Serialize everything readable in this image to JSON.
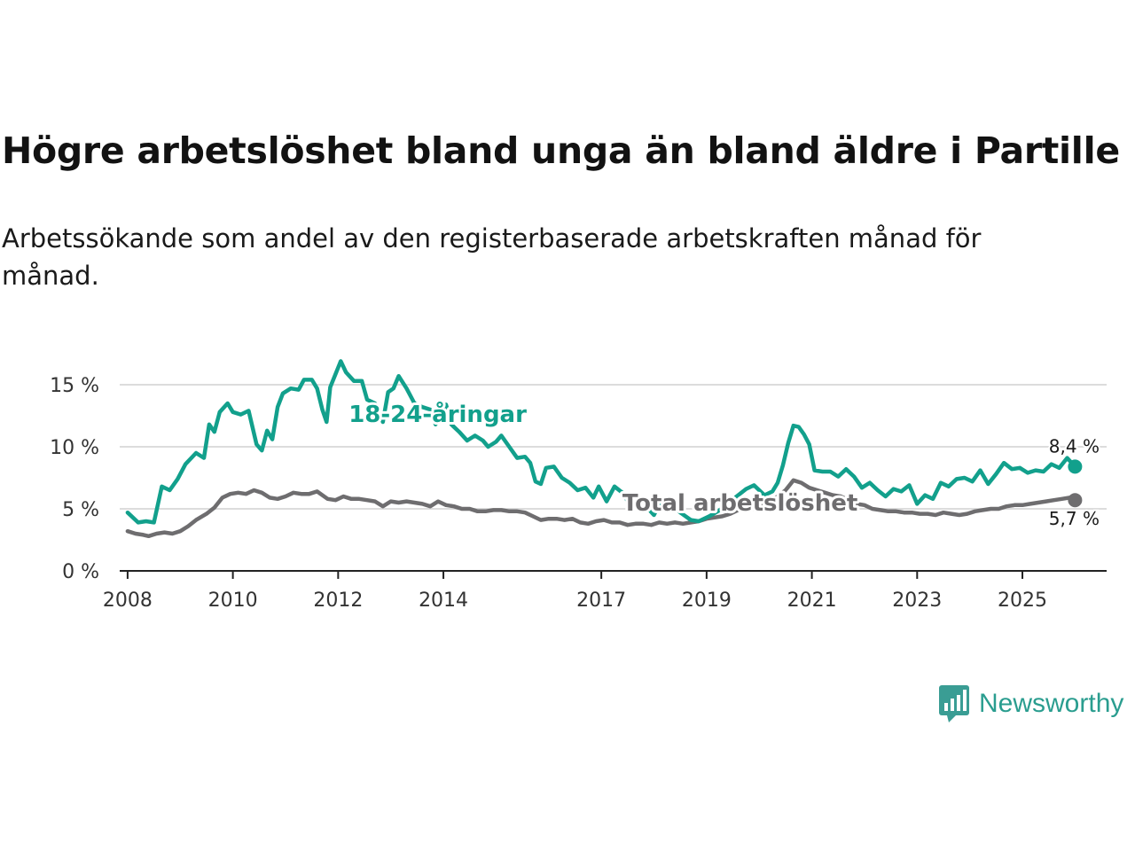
{
  "title": "Högre arbetslöshet bland unga än bland äldre i Partille",
  "subtitle": "Arbetssökande som andel av den registerbaserade arbetskraften månad för månad.",
  "brand": {
    "name": "Newsworthy",
    "icon": "newsworthy-logo-icon",
    "color": "#3a9d94"
  },
  "chart_data": {
    "type": "line",
    "title": "Högre arbetslöshet bland unga än bland äldre i Partille",
    "xlabel": "",
    "ylabel": "",
    "xlim": [
      2007.85,
      2026.6
    ],
    "ylim": [
      0,
      16
    ],
    "yticks": [
      0,
      5,
      10,
      15
    ],
    "ytick_labels": [
      "0 %",
      "5 %",
      "10 %",
      "15 %"
    ],
    "xticks": [
      2008,
      2010,
      2012,
      2014,
      2017,
      2019,
      2021,
      2023,
      2025
    ],
    "xtick_labels": [
      "2008",
      "2010",
      "2012",
      "2014",
      "2017",
      "2019",
      "2021",
      "2023",
      "2025"
    ],
    "grid": true,
    "series": [
      {
        "name": "18-24-åringar",
        "color": "#12a08c",
        "label_at": [
          2012.2,
          12
        ],
        "end_label": "8,4 %",
        "points": [
          [
            2008.0,
            4.7
          ],
          [
            2008.2,
            3.9
          ],
          [
            2008.35,
            4.0
          ],
          [
            2008.5,
            3.9
          ],
          [
            2008.65,
            6.8
          ],
          [
            2008.8,
            6.5
          ],
          [
            2008.95,
            7.4
          ],
          [
            2009.1,
            8.6
          ],
          [
            2009.3,
            9.5
          ],
          [
            2009.45,
            9.1
          ],
          [
            2009.55,
            11.8
          ],
          [
            2009.65,
            11.2
          ],
          [
            2009.75,
            12.8
          ],
          [
            2009.9,
            13.5
          ],
          [
            2010.0,
            12.8
          ],
          [
            2010.15,
            12.6
          ],
          [
            2010.3,
            12.9
          ],
          [
            2010.45,
            10.2
          ],
          [
            2010.55,
            9.7
          ],
          [
            2010.65,
            11.3
          ],
          [
            2010.75,
            10.6
          ],
          [
            2010.85,
            13.2
          ],
          [
            2010.95,
            14.3
          ],
          [
            2011.1,
            14.7
          ],
          [
            2011.25,
            14.6
          ],
          [
            2011.35,
            15.4
          ],
          [
            2011.5,
            15.4
          ],
          [
            2011.6,
            14.7
          ],
          [
            2011.7,
            13.0
          ],
          [
            2011.78,
            12.0
          ],
          [
            2011.85,
            14.8
          ],
          [
            2012.05,
            16.9
          ],
          [
            2012.15,
            16.0
          ],
          [
            2012.3,
            15.3
          ],
          [
            2012.45,
            15.3
          ],
          [
            2012.55,
            13.8
          ],
          [
            2012.7,
            13.5
          ],
          [
            2012.85,
            12.0
          ],
          [
            2012.95,
            14.4
          ],
          [
            2013.05,
            14.7
          ],
          [
            2013.15,
            15.7
          ],
          [
            2013.3,
            14.7
          ],
          [
            2013.45,
            13.5
          ],
          [
            2013.6,
            13.2
          ],
          [
            2013.75,
            13.0
          ],
          [
            2013.85,
            11.8
          ],
          [
            2013.95,
            12.6
          ],
          [
            2014.05,
            13.4
          ],
          [
            2014.15,
            11.8
          ],
          [
            2014.3,
            11.2
          ],
          [
            2014.45,
            10.5
          ],
          [
            2014.6,
            10.9
          ],
          [
            2014.75,
            10.5
          ],
          [
            2014.85,
            10.0
          ],
          [
            2015.0,
            10.4
          ],
          [
            2015.1,
            10.9
          ],
          [
            2015.25,
            10.0
          ],
          [
            2015.4,
            9.1
          ],
          [
            2015.55,
            9.2
          ],
          [
            2015.65,
            8.7
          ],
          [
            2015.75,
            7.2
          ],
          [
            2015.85,
            7.0
          ],
          [
            2015.95,
            8.3
          ],
          [
            2016.1,
            8.4
          ],
          [
            2016.25,
            7.5
          ],
          [
            2016.4,
            7.1
          ],
          [
            2016.55,
            6.5
          ],
          [
            2016.7,
            6.7
          ],
          [
            2016.85,
            5.9
          ],
          [
            2016.95,
            6.8
          ],
          [
            2017.1,
            5.6
          ],
          [
            2017.25,
            6.8
          ],
          [
            2017.4,
            6.3
          ],
          [
            2017.55,
            5.3
          ],
          [
            2017.7,
            5.0
          ],
          [
            2017.85,
            5.2
          ],
          [
            2018.0,
            4.5
          ],
          [
            2018.15,
            5.8
          ],
          [
            2018.3,
            5.4
          ],
          [
            2018.5,
            4.7
          ],
          [
            2018.7,
            4.1
          ],
          [
            2018.85,
            4.0
          ],
          [
            2019.05,
            4.4
          ],
          [
            2019.25,
            4.9
          ],
          [
            2019.45,
            5.6
          ],
          [
            2019.6,
            6.1
          ],
          [
            2019.75,
            6.6
          ],
          [
            2019.9,
            6.9
          ],
          [
            2020.0,
            6.5
          ],
          [
            2020.1,
            6.1
          ],
          [
            2020.25,
            6.4
          ],
          [
            2020.35,
            7.1
          ],
          [
            2020.45,
            8.5
          ],
          [
            2020.55,
            10.3
          ],
          [
            2020.65,
            11.7
          ],
          [
            2020.75,
            11.6
          ],
          [
            2020.85,
            11.0
          ],
          [
            2020.95,
            10.2
          ],
          [
            2021.05,
            8.1
          ],
          [
            2021.2,
            8.0
          ],
          [
            2021.35,
            8.0
          ],
          [
            2021.5,
            7.6
          ],
          [
            2021.65,
            8.2
          ],
          [
            2021.8,
            7.6
          ],
          [
            2021.95,
            6.7
          ],
          [
            2022.1,
            7.1
          ],
          [
            2022.25,
            6.5
          ],
          [
            2022.4,
            6.0
          ],
          [
            2022.55,
            6.6
          ],
          [
            2022.7,
            6.4
          ],
          [
            2022.85,
            6.9
          ],
          [
            2023.0,
            5.4
          ],
          [
            2023.15,
            6.1
          ],
          [
            2023.3,
            5.8
          ],
          [
            2023.45,
            7.1
          ],
          [
            2023.6,
            6.8
          ],
          [
            2023.75,
            7.4
          ],
          [
            2023.9,
            7.5
          ],
          [
            2024.05,
            7.2
          ],
          [
            2024.2,
            8.1
          ],
          [
            2024.35,
            7.0
          ],
          [
            2024.5,
            7.8
          ],
          [
            2024.65,
            8.7
          ],
          [
            2024.8,
            8.2
          ],
          [
            2024.95,
            8.3
          ],
          [
            2025.1,
            7.9
          ],
          [
            2025.25,
            8.1
          ],
          [
            2025.4,
            8.0
          ],
          [
            2025.55,
            8.6
          ],
          [
            2025.7,
            8.3
          ],
          [
            2025.85,
            9.1
          ],
          [
            2026.0,
            8.4
          ]
        ]
      },
      {
        "name": "Total arbetslöshet",
        "color": "#6e6d6f",
        "label_at": [
          2017.4,
          4.85
        ],
        "end_label": "5,7 %",
        "points": [
          [
            2008.0,
            3.2
          ],
          [
            2008.15,
            3.0
          ],
          [
            2008.3,
            2.9
          ],
          [
            2008.4,
            2.8
          ],
          [
            2008.55,
            3.0
          ],
          [
            2008.7,
            3.1
          ],
          [
            2008.85,
            3.0
          ],
          [
            2009.0,
            3.2
          ],
          [
            2009.15,
            3.6
          ],
          [
            2009.3,
            4.1
          ],
          [
            2009.5,
            4.6
          ],
          [
            2009.65,
            5.1
          ],
          [
            2009.8,
            5.9
          ],
          [
            2009.95,
            6.2
          ],
          [
            2010.1,
            6.3
          ],
          [
            2010.25,
            6.2
          ],
          [
            2010.4,
            6.5
          ],
          [
            2010.55,
            6.3
          ],
          [
            2010.7,
            5.9
          ],
          [
            2010.85,
            5.8
          ],
          [
            2011.0,
            6.0
          ],
          [
            2011.15,
            6.3
          ],
          [
            2011.3,
            6.2
          ],
          [
            2011.45,
            6.2
          ],
          [
            2011.6,
            6.4
          ],
          [
            2011.8,
            5.8
          ],
          [
            2011.95,
            5.7
          ],
          [
            2012.1,
            6.0
          ],
          [
            2012.25,
            5.8
          ],
          [
            2012.4,
            5.8
          ],
          [
            2012.55,
            5.7
          ],
          [
            2012.7,
            5.6
          ],
          [
            2012.85,
            5.2
          ],
          [
            2013.0,
            5.6
          ],
          [
            2013.15,
            5.5
          ],
          [
            2013.3,
            5.6
          ],
          [
            2013.45,
            5.5
          ],
          [
            2013.6,
            5.4
          ],
          [
            2013.75,
            5.2
          ],
          [
            2013.9,
            5.6
          ],
          [
            2014.05,
            5.3
          ],
          [
            2014.2,
            5.2
          ],
          [
            2014.35,
            5.0
          ],
          [
            2014.5,
            5.0
          ],
          [
            2014.65,
            4.8
          ],
          [
            2014.8,
            4.8
          ],
          [
            2014.95,
            4.9
          ],
          [
            2015.1,
            4.9
          ],
          [
            2015.25,
            4.8
          ],
          [
            2015.4,
            4.8
          ],
          [
            2015.55,
            4.7
          ],
          [
            2015.7,
            4.4
          ],
          [
            2015.85,
            4.1
          ],
          [
            2016.0,
            4.2
          ],
          [
            2016.15,
            4.2
          ],
          [
            2016.3,
            4.1
          ],
          [
            2016.45,
            4.2
          ],
          [
            2016.6,
            3.9
          ],
          [
            2016.75,
            3.8
          ],
          [
            2016.9,
            4.0
          ],
          [
            2017.05,
            4.1
          ],
          [
            2017.2,
            3.9
          ],
          [
            2017.35,
            3.9
          ],
          [
            2017.5,
            3.7
          ],
          [
            2017.65,
            3.8
          ],
          [
            2017.8,
            3.8
          ],
          [
            2017.95,
            3.7
          ],
          [
            2018.1,
            3.9
          ],
          [
            2018.25,
            3.8
          ],
          [
            2018.4,
            3.9
          ],
          [
            2018.55,
            3.8
          ],
          [
            2018.7,
            3.9
          ],
          [
            2018.85,
            4.0
          ],
          [
            2019.0,
            4.2
          ],
          [
            2019.15,
            4.3
          ],
          [
            2019.3,
            4.4
          ],
          [
            2019.45,
            4.6
          ],
          [
            2019.6,
            4.9
          ],
          [
            2019.75,
            5.1
          ],
          [
            2019.9,
            5.0
          ],
          [
            2020.05,
            5.2
          ],
          [
            2020.2,
            5.6
          ],
          [
            2020.35,
            6.0
          ],
          [
            2020.5,
            6.5
          ],
          [
            2020.65,
            7.3
          ],
          [
            2020.8,
            7.1
          ],
          [
            2020.95,
            6.7
          ],
          [
            2021.1,
            6.5
          ],
          [
            2021.25,
            6.3
          ],
          [
            2021.4,
            6.1
          ],
          [
            2021.55,
            6.0
          ],
          [
            2021.7,
            5.7
          ],
          [
            2021.85,
            5.4
          ],
          [
            2022.0,
            5.3
          ],
          [
            2022.15,
            5.0
          ],
          [
            2022.3,
            4.9
          ],
          [
            2022.45,
            4.8
          ],
          [
            2022.6,
            4.8
          ],
          [
            2022.75,
            4.7
          ],
          [
            2022.9,
            4.7
          ],
          [
            2023.05,
            4.6
          ],
          [
            2023.2,
            4.6
          ],
          [
            2023.35,
            4.5
          ],
          [
            2023.5,
            4.7
          ],
          [
            2023.65,
            4.6
          ],
          [
            2023.8,
            4.5
          ],
          [
            2023.95,
            4.6
          ],
          [
            2024.1,
            4.8
          ],
          [
            2024.25,
            4.9
          ],
          [
            2024.4,
            5.0
          ],
          [
            2024.55,
            5.0
          ],
          [
            2024.7,
            5.2
          ],
          [
            2024.85,
            5.3
          ],
          [
            2025.0,
            5.3
          ],
          [
            2025.15,
            5.4
          ],
          [
            2025.3,
            5.5
          ],
          [
            2025.45,
            5.6
          ],
          [
            2025.6,
            5.7
          ],
          [
            2025.75,
            5.8
          ],
          [
            2025.9,
            5.9
          ],
          [
            2026.0,
            5.7
          ]
        ]
      }
    ]
  }
}
